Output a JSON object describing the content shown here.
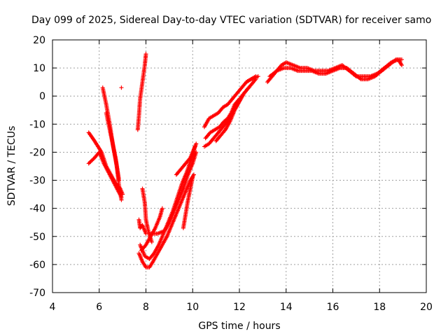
{
  "chart_data": {
    "type": "scatter",
    "title": "Day 099 of 2025, Sidereal Day-to-day VTEC variation (SDTVAR) for receiver samo",
    "xlabel": "GPS time / hours",
    "ylabel": "SDTVAR / TECUs",
    "xlim": [
      4,
      20
    ],
    "ylim": [
      -70,
      20
    ],
    "xticks": [
      "4",
      "6",
      "8",
      "10",
      "12",
      "14",
      "16",
      "18",
      "20"
    ],
    "yticks": [
      "-70",
      "-60",
      "-50",
      "-40",
      "-30",
      "-20",
      "-10",
      "0",
      "10",
      "20"
    ],
    "grid": true,
    "marker": "+",
    "series": [
      {
        "name": "SDTVAR",
        "color": "#ff0000",
        "segments": [
          [
            [
              5.55,
              -13
            ],
            [
              5.8,
              -16
            ],
            [
              6.1,
              -20
            ],
            [
              6.3,
              -25
            ],
            [
              6.5,
              -28
            ],
            [
              6.7,
              -31
            ],
            [
              6.9,
              -33
            ],
            [
              7.0,
              -35
            ]
          ],
          [
            [
              5.55,
              -24
            ],
            [
              5.8,
              -22
            ],
            [
              6.0,
              -20
            ],
            [
              6.2,
              -24
            ],
            [
              6.45,
              -28
            ],
            [
              6.7,
              -32
            ],
            [
              6.95,
              -36
            ]
          ],
          [
            [
              6.15,
              3
            ],
            [
              6.3,
              -3
            ],
            [
              6.45,
              -10
            ],
            [
              6.6,
              -18
            ],
            [
              6.75,
              -25
            ],
            [
              6.85,
              -32
            ],
            [
              6.95,
              -37
            ]
          ],
          [
            [
              6.3,
              -6
            ],
            [
              6.5,
              -14
            ],
            [
              6.7,
              -22
            ],
            [
              6.85,
              -30
            ]
          ],
          [
            [
              6.95,
              3
            ]
          ],
          [
            [
              7.65,
              -12
            ],
            [
              7.7,
              -7
            ],
            [
              7.75,
              -1
            ],
            [
              7.85,
              5
            ],
            [
              7.95,
              11
            ],
            [
              8.0,
              15
            ]
          ],
          [
            [
              7.7,
              -44
            ],
            [
              7.75,
              -47
            ],
            [
              7.85,
              -46
            ],
            [
              8.0,
              -49
            ]
          ],
          [
            [
              7.85,
              -33
            ],
            [
              7.95,
              -38
            ],
            [
              8.0,
              -44
            ],
            [
              8.1,
              -48
            ],
            [
              8.25,
              -52
            ]
          ],
          [
            [
              7.7,
              -56
            ],
            [
              7.85,
              -59
            ],
            [
              8.0,
              -61
            ],
            [
              8.15,
              -61
            ],
            [
              8.3,
              -59
            ],
            [
              8.5,
              -56
            ],
            [
              8.7,
              -53
            ],
            [
              8.9,
              -50
            ],
            [
              9.1,
              -46
            ],
            [
              9.3,
              -42
            ],
            [
              9.5,
              -38
            ],
            [
              9.7,
              -34
            ],
            [
              9.9,
              -30
            ],
            [
              10.05,
              -28
            ]
          ],
          [
            [
              7.75,
              -53
            ],
            [
              7.95,
              -57
            ],
            [
              8.15,
              -58
            ],
            [
              8.35,
              -56
            ],
            [
              8.55,
              -53
            ],
            [
              8.75,
              -49
            ],
            [
              8.95,
              -45
            ],
            [
              9.15,
              -41
            ],
            [
              9.35,
              -36
            ],
            [
              9.55,
              -31
            ],
            [
              9.75,
              -27
            ],
            [
              9.95,
              -22
            ],
            [
              10.1,
              -18
            ]
          ],
          [
            [
              7.8,
              -55
            ],
            [
              8.0,
              -53
            ],
            [
              8.2,
              -50
            ],
            [
              8.4,
              -47
            ],
            [
              8.6,
              -43
            ],
            [
              8.7,
              -40
            ]
          ],
          [
            [
              8.2,
              -49
            ],
            [
              8.5,
              -49
            ],
            [
              8.8,
              -48
            ],
            [
              9.0,
              -45
            ],
            [
              9.2,
              -41
            ],
            [
              9.4,
              -37
            ],
            [
              9.6,
              -33
            ],
            [
              9.8,
              -28
            ],
            [
              10.0,
              -24
            ],
            [
              10.15,
              -20
            ]
          ],
          [
            [
              9.3,
              -28
            ],
            [
              9.5,
              -26
            ],
            [
              9.7,
              -24
            ],
            [
              9.9,
              -22
            ],
            [
              10.05,
              -19
            ],
            [
              10.15,
              -17
            ]
          ],
          [
            [
              9.6,
              -47
            ],
            [
              9.7,
              -42
            ],
            [
              9.8,
              -37
            ],
            [
              9.9,
              -33
            ],
            [
              10.0,
              -29
            ]
          ],
          [
            [
              10.5,
              -18
            ],
            [
              10.7,
              -17
            ],
            [
              10.9,
              -15
            ],
            [
              11.1,
              -13
            ],
            [
              11.3,
              -11
            ],
            [
              11.5,
              -9
            ],
            [
              11.7,
              -6
            ],
            [
              11.9,
              -3
            ],
            [
              12.1,
              0
            ],
            [
              12.3,
              2
            ],
            [
              12.5,
              4
            ],
            [
              12.7,
              6
            ]
          ],
          [
            [
              10.5,
              -11
            ],
            [
              10.7,
              -8
            ],
            [
              10.9,
              -7
            ],
            [
              11.1,
              -6
            ],
            [
              11.3,
              -4
            ],
            [
              11.5,
              -3
            ],
            [
              11.7,
              -1
            ],
            [
              11.9,
              1
            ],
            [
              12.1,
              3
            ],
            [
              12.3,
              5
            ],
            [
              12.5,
              6
            ],
            [
              12.7,
              7
            ]
          ],
          [
            [
              10.55,
              -15
            ],
            [
              10.75,
              -13
            ],
            [
              10.95,
              -12
            ],
            [
              11.15,
              -11
            ],
            [
              11.35,
              -9
            ],
            [
              11.5,
              -8
            ],
            [
              11.65,
              -6
            ],
            [
              11.8,
              -3
            ],
            [
              12.0,
              -1
            ]
          ],
          [
            [
              11.0,
              -16
            ],
            [
              11.2,
              -14
            ],
            [
              11.4,
              -12
            ],
            [
              11.6,
              -9
            ],
            [
              11.8,
              -5
            ],
            [
              12.0,
              -2
            ],
            [
              12.2,
              1
            ],
            [
              12.4,
              3
            ]
          ],
          [
            [
              12.3,
              5
            ],
            [
              12.5,
              6
            ],
            [
              12.8,
              7
            ]
          ],
          [
            [
              13.2,
              5
            ],
            [
              13.4,
              7
            ],
            [
              13.6,
              9
            ],
            [
              13.8,
              11
            ],
            [
              14.0,
              12
            ],
            [
              14.3,
              11
            ],
            [
              14.6,
              10
            ],
            [
              14.9,
              10
            ],
            [
              15.2,
              9
            ],
            [
              15.5,
              9
            ],
            [
              15.8,
              9
            ],
            [
              16.1,
              10
            ],
            [
              16.4,
              11
            ],
            [
              16.7,
              9
            ],
            [
              17.0,
              7
            ],
            [
              17.3,
              7
            ],
            [
              17.6,
              7
            ],
            [
              17.9,
              8
            ],
            [
              18.2,
              10
            ],
            [
              18.5,
              12
            ],
            [
              18.8,
              13
            ],
            [
              18.95,
              11
            ]
          ],
          [
            [
              13.3,
              7
            ],
            [
              13.6,
              9
            ],
            [
              13.9,
              10
            ],
            [
              14.2,
              10
            ],
            [
              14.5,
              9
            ],
            [
              14.8,
              9
            ],
            [
              15.1,
              9
            ],
            [
              15.4,
              8
            ],
            [
              15.7,
              8
            ],
            [
              16.0,
              9
            ],
            [
              16.3,
              10
            ],
            [
              16.6,
              10
            ],
            [
              16.9,
              8
            ],
            [
              17.2,
              6
            ],
            [
              17.5,
              6
            ],
            [
              17.8,
              7
            ],
            [
              18.1,
              9
            ],
            [
              18.4,
              11
            ],
            [
              18.7,
              13
            ],
            [
              18.95,
              13
            ]
          ]
        ]
      }
    ]
  }
}
